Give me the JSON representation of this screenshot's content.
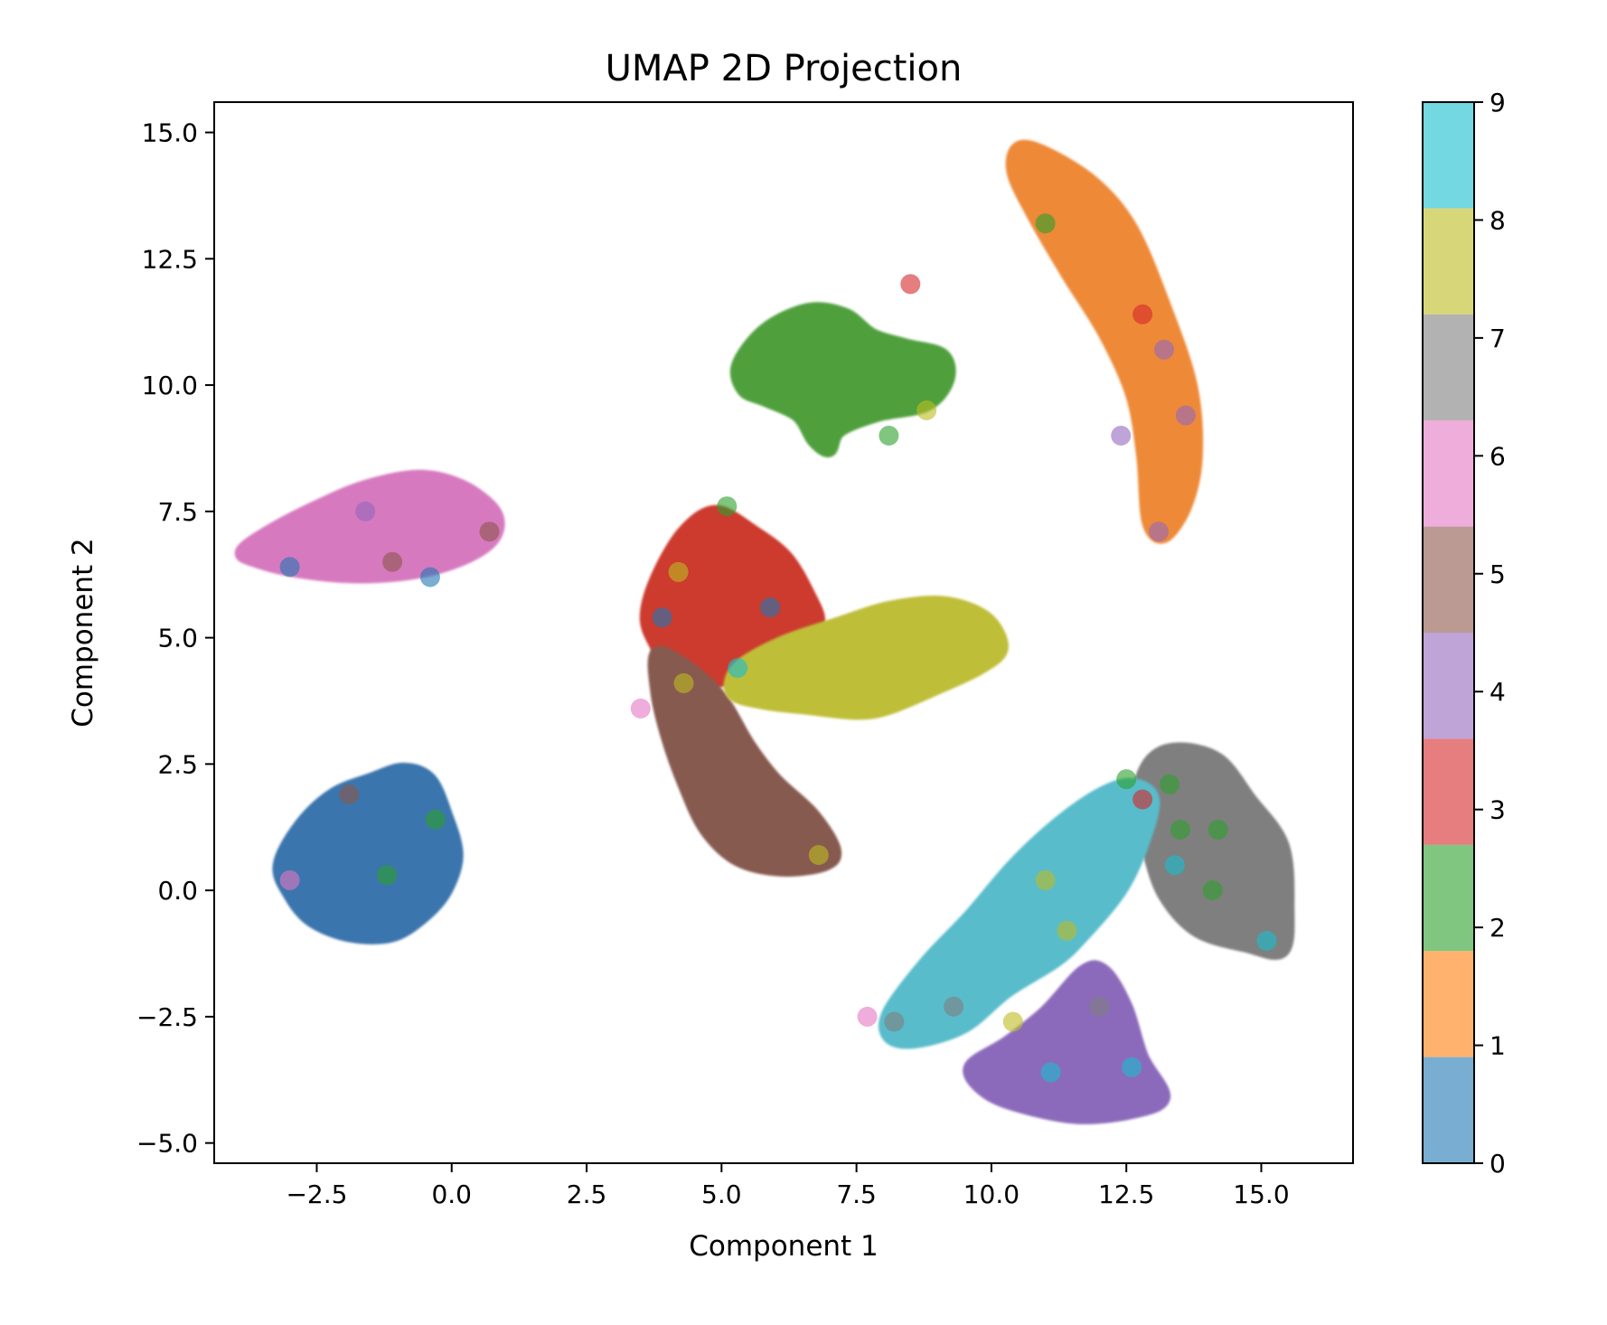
{
  "chart_data": {
    "type": "scatter",
    "title": "UMAP 2D Projection",
    "xlabel": "Component 1",
    "ylabel": "Component 2",
    "xlim": [
      -4.4,
      16.7
    ],
    "ylim": [
      -5.4,
      15.6
    ],
    "xticks": [
      -2.5,
      0.0,
      2.5,
      5.0,
      7.5,
      10.0,
      12.5,
      15.0
    ],
    "xtick_labels": [
      "−2.5",
      "0.0",
      "2.5",
      "5.0",
      "7.5",
      "10.0",
      "12.5",
      "15.0"
    ],
    "yticks": [
      -5.0,
      -2.5,
      0.0,
      2.5,
      5.0,
      7.5,
      10.0,
      12.5,
      15.0
    ],
    "ytick_labels": [
      "−5.0",
      "−2.5",
      "0.0",
      "2.5",
      "5.0",
      "7.5",
      "10.0",
      "12.5",
      "15.0"
    ],
    "grid": false,
    "legend": "none",
    "point_alpha": 0.6,
    "colorbar": {
      "range": [
        0,
        9
      ],
      "ticks": [
        0,
        1,
        2,
        3,
        4,
        5,
        6,
        7,
        8,
        9
      ],
      "tick_labels": [
        "0",
        "1",
        "2",
        "3",
        "4",
        "5",
        "6",
        "7",
        "8",
        "9"
      ],
      "colors": [
        "#1f77b4",
        "#ff7f0e",
        "#2ca02c",
        "#d62728",
        "#9467bd",
        "#8c564b",
        "#e377c2",
        "#7f7f7f",
        "#bcbd22",
        "#17becf"
      ]
    },
    "clusters": [
      {
        "label": 0,
        "color": "#3a75ad",
        "outline": [
          [
            -3.2,
            0.5
          ],
          [
            -2.8,
            1.3
          ],
          [
            -2.2,
            1.9
          ],
          [
            -1.5,
            2.2
          ],
          [
            -0.9,
            2.4
          ],
          [
            -0.4,
            2.2
          ],
          [
            -0.1,
            1.5
          ],
          [
            0.1,
            0.7
          ],
          [
            -0.1,
            0.0
          ],
          [
            -0.5,
            -0.5
          ],
          [
            -1.1,
            -0.9
          ],
          [
            -1.9,
            -0.9
          ],
          [
            -2.6,
            -0.6
          ],
          [
            -3.0,
            -0.1
          ]
        ]
      },
      {
        "label": 1,
        "color": "#ee8937",
        "outline": [
          [
            10.5,
            14.7
          ],
          [
            11.0,
            14.6
          ],
          [
            11.9,
            14.0
          ],
          [
            12.6,
            13.1
          ],
          [
            13.2,
            11.6
          ],
          [
            13.7,
            10.0
          ],
          [
            13.8,
            8.6
          ],
          [
            13.6,
            7.6
          ],
          [
            13.2,
            7.0
          ],
          [
            12.9,
            7.3
          ],
          [
            12.8,
            8.6
          ],
          [
            12.6,
            9.8
          ],
          [
            12.1,
            11.0
          ],
          [
            11.4,
            12.2
          ],
          [
            10.8,
            13.3
          ],
          [
            10.4,
            14.2
          ]
        ]
      },
      {
        "label": 2,
        "color": "#50a03c",
        "outline": [
          [
            5.3,
            10.4
          ],
          [
            5.8,
            11.1
          ],
          [
            6.6,
            11.5
          ],
          [
            7.3,
            11.4
          ],
          [
            7.8,
            11.0
          ],
          [
            8.4,
            10.8
          ],
          [
            9.1,
            10.6
          ],
          [
            9.2,
            10.1
          ],
          [
            8.8,
            9.6
          ],
          [
            7.9,
            9.4
          ],
          [
            7.2,
            9.1
          ],
          [
            7.0,
            8.7
          ],
          [
            6.7,
            8.9
          ],
          [
            6.4,
            9.4
          ],
          [
            5.8,
            9.7
          ],
          [
            5.4,
            9.9
          ]
        ]
      },
      {
        "label": 3,
        "color": "#cc3a2e",
        "outline": [
          [
            3.6,
            5.4
          ],
          [
            3.8,
            6.2
          ],
          [
            4.3,
            7.1
          ],
          [
            4.9,
            7.5
          ],
          [
            5.6,
            7.1
          ],
          [
            6.2,
            6.6
          ],
          [
            6.6,
            5.9
          ],
          [
            6.8,
            5.3
          ],
          [
            6.4,
            5.0
          ],
          [
            5.9,
            4.6
          ],
          [
            5.4,
            4.3
          ],
          [
            4.7,
            4.1
          ],
          [
            4.1,
            4.3
          ],
          [
            3.8,
            4.8
          ]
        ]
      },
      {
        "label": 4,
        "color": "#8c6bbb",
        "outline": [
          [
            9.6,
            -3.5
          ],
          [
            10.3,
            -3.0
          ],
          [
            11.0,
            -2.4
          ],
          [
            11.7,
            -1.6
          ],
          [
            12.1,
            -1.6
          ],
          [
            12.5,
            -2.3
          ],
          [
            12.8,
            -3.3
          ],
          [
            13.2,
            -4.1
          ],
          [
            12.6,
            -4.4
          ],
          [
            11.6,
            -4.5
          ],
          [
            10.6,
            -4.3
          ],
          [
            9.9,
            -4.0
          ]
        ]
      },
      {
        "label": 5,
        "color": "#875a4f",
        "outline": [
          [
            3.8,
            4.7
          ],
          [
            4.4,
            4.4
          ],
          [
            5.0,
            3.8
          ],
          [
            5.5,
            2.9
          ],
          [
            6.0,
            2.2
          ],
          [
            6.7,
            1.5
          ],
          [
            7.1,
            0.8
          ],
          [
            6.9,
            0.5
          ],
          [
            6.1,
            0.4
          ],
          [
            5.3,
            0.6
          ],
          [
            4.7,
            1.2
          ],
          [
            4.3,
            2.1
          ],
          [
            4.0,
            3.0
          ],
          [
            3.8,
            3.9
          ]
        ]
      },
      {
        "label": 6,
        "color": "#d779bf",
        "outline": [
          [
            -3.9,
            6.7
          ],
          [
            -3.4,
            7.1
          ],
          [
            -2.5,
            7.6
          ],
          [
            -1.6,
            8.0
          ],
          [
            -0.6,
            8.2
          ],
          [
            0.2,
            8.0
          ],
          [
            0.8,
            7.5
          ],
          [
            0.8,
            7.0
          ],
          [
            0.3,
            6.6
          ],
          [
            -0.6,
            6.3
          ],
          [
            -1.7,
            6.2
          ],
          [
            -2.8,
            6.3
          ],
          [
            -3.6,
            6.5
          ]
        ]
      },
      {
        "label": 7,
        "color": "#7f7f7f",
        "outline": [
          [
            12.9,
            2.5
          ],
          [
            13.4,
            2.8
          ],
          [
            14.2,
            2.6
          ],
          [
            14.8,
            1.8
          ],
          [
            15.4,
            0.9
          ],
          [
            15.5,
            -0.3
          ],
          [
            15.4,
            -1.2
          ],
          [
            14.7,
            -1.1
          ],
          [
            13.8,
            -0.8
          ],
          [
            13.2,
            -0.1
          ],
          [
            12.9,
            0.8
          ],
          [
            12.7,
            1.7
          ]
        ]
      },
      {
        "label": 8,
        "color": "#bfbe39",
        "outline": [
          [
            5.3,
            4.4
          ],
          [
            6.1,
            4.9
          ],
          [
            7.2,
            5.3
          ],
          [
            8.1,
            5.6
          ],
          [
            9.1,
            5.7
          ],
          [
            9.9,
            5.4
          ],
          [
            10.2,
            4.8
          ],
          [
            9.8,
            4.4
          ],
          [
            9.0,
            4.0
          ],
          [
            8.1,
            3.6
          ],
          [
            7.5,
            3.5
          ],
          [
            6.6,
            3.6
          ],
          [
            5.8,
            3.7
          ],
          [
            5.2,
            3.9
          ]
        ]
      },
      {
        "label": 9,
        "color": "#58bccb",
        "outline": [
          [
            8.1,
            -2.4
          ],
          [
            8.8,
            -1.4
          ],
          [
            9.6,
            -0.5
          ],
          [
            10.4,
            0.5
          ],
          [
            11.2,
            1.3
          ],
          [
            12.0,
            1.9
          ],
          [
            12.6,
            2.1
          ],
          [
            13.0,
            1.8
          ],
          [
            12.8,
            0.9
          ],
          [
            12.4,
            0.0
          ],
          [
            11.7,
            -0.9
          ],
          [
            11.2,
            -1.4
          ],
          [
            10.3,
            -2.0
          ],
          [
            9.5,
            -2.7
          ],
          [
            8.6,
            -3.0
          ],
          [
            8.1,
            -2.9
          ]
        ]
      }
    ],
    "outliers": [
      {
        "x": 11.0,
        "y": 13.2,
        "label": 2
      },
      {
        "x": 13.2,
        "y": 10.7,
        "label": 4
      },
      {
        "x": 13.6,
        "y": 9.4,
        "label": 4
      },
      {
        "x": 12.4,
        "y": 9.0,
        "label": 4
      },
      {
        "x": 13.1,
        "y": 7.1,
        "label": 4
      },
      {
        "x": 12.8,
        "y": 11.4,
        "label": 3
      },
      {
        "x": 8.5,
        "y": 12.0,
        "label": 3
      },
      {
        "x": 8.8,
        "y": 9.5,
        "label": 8
      },
      {
        "x": 8.1,
        "y": 9.0,
        "label": 2
      },
      {
        "x": -1.6,
        "y": 7.5,
        "label": 4
      },
      {
        "x": 0.7,
        "y": 7.1,
        "label": 5
      },
      {
        "x": -0.4,
        "y": 6.2,
        "label": 0
      },
      {
        "x": -3.0,
        "y": 6.4,
        "label": 0
      },
      {
        "x": -1.1,
        "y": 6.5,
        "label": 5
      },
      {
        "x": 5.1,
        "y": 7.6,
        "label": 2
      },
      {
        "x": 4.2,
        "y": 6.3,
        "label": 8
      },
      {
        "x": 3.9,
        "y": 5.4,
        "label": 0
      },
      {
        "x": 5.9,
        "y": 5.6,
        "label": 0
      },
      {
        "x": 5.3,
        "y": 4.4,
        "label": 9
      },
      {
        "x": 4.3,
        "y": 4.1,
        "label": 8
      },
      {
        "x": 3.5,
        "y": 3.6,
        "label": 6
      },
      {
        "x": 6.8,
        "y": 0.7,
        "label": 8
      },
      {
        "x": -0.3,
        "y": 1.4,
        "label": 2
      },
      {
        "x": -1.2,
        "y": 0.3,
        "label": 2
      },
      {
        "x": -3.0,
        "y": 0.2,
        "label": 6
      },
      {
        "x": -1.9,
        "y": 1.9,
        "label": 5
      },
      {
        "x": 7.7,
        "y": -2.5,
        "label": 6
      },
      {
        "x": 9.3,
        "y": -2.3,
        "label": 7
      },
      {
        "x": 8.2,
        "y": -2.6,
        "label": 7
      },
      {
        "x": 10.4,
        "y": -2.6,
        "label": 8
      },
      {
        "x": 11.1,
        "y": -3.6,
        "label": 9
      },
      {
        "x": 12.0,
        "y": -2.3,
        "label": 7
      },
      {
        "x": 12.6,
        "y": -3.5,
        "label": 9
      },
      {
        "x": 13.3,
        "y": 2.1,
        "label": 2
      },
      {
        "x": 13.5,
        "y": 1.2,
        "label": 2
      },
      {
        "x": 14.2,
        "y": 1.2,
        "label": 2
      },
      {
        "x": 14.1,
        "y": 0.0,
        "label": 2
      },
      {
        "x": 13.4,
        "y": 0.5,
        "label": 9
      },
      {
        "x": 12.8,
        "y": 1.8,
        "label": 3
      },
      {
        "x": 15.1,
        "y": -1.0,
        "label": 9
      },
      {
        "x": 11.0,
        "y": 0.2,
        "label": 8
      },
      {
        "x": 11.4,
        "y": -0.8,
        "label": 8
      },
      {
        "x": 12.5,
        "y": 2.2,
        "label": 2
      }
    ]
  }
}
